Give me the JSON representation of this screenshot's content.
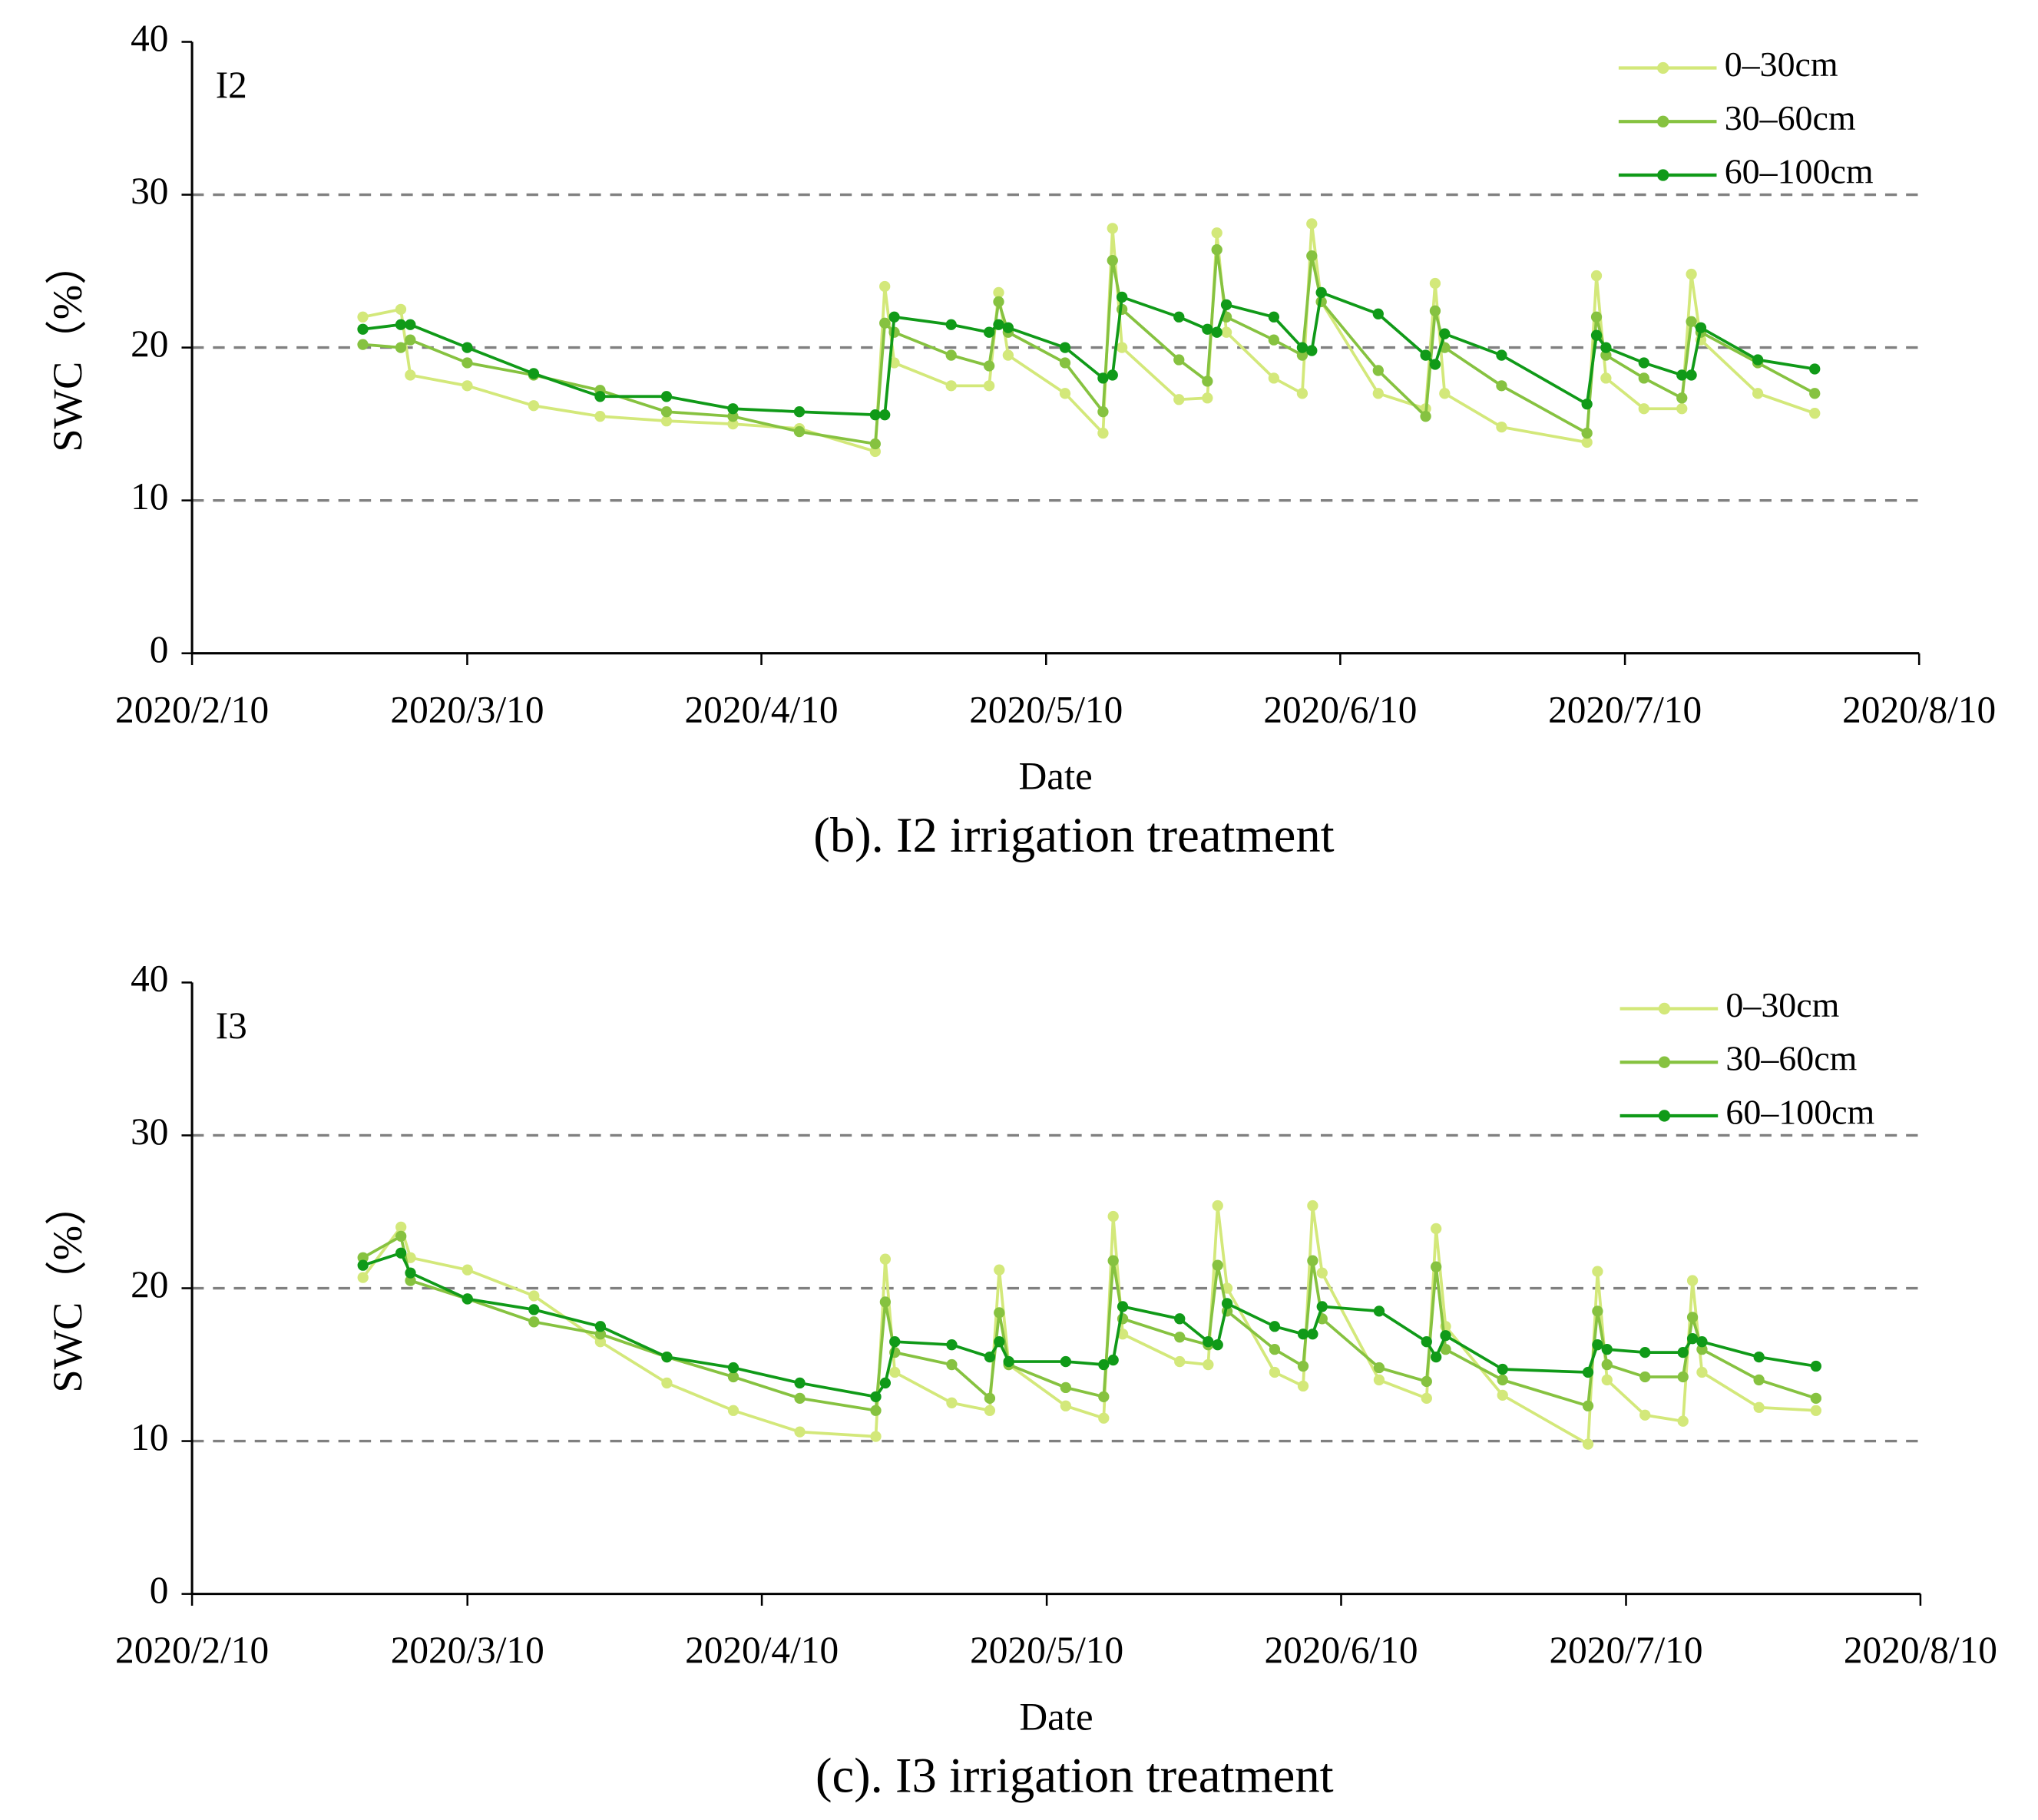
{
  "chart_data": [
    {
      "type": "line",
      "panel_label": "I2",
      "caption": "(b). I2 irrigation treatment",
      "xlabel": "Date",
      "ylabel": "SWC（%）",
      "xlim": [
        "2020/2/10",
        "2020/8/10"
      ],
      "xticks": [
        "2020/2/10",
        "2020/3/10",
        "2020/4/10",
        "2020/5/10",
        "2020/6/10",
        "2020/7/10",
        "2020/8/10"
      ],
      "ylim": [
        0,
        40
      ],
      "yticks": [
        0,
        10,
        20,
        30,
        40
      ],
      "grid": true,
      "legend": "upper right",
      "x": [
        "2020/2/28",
        "2020/3/3",
        "2020/3/4",
        "2020/3/10",
        "2020/3/17",
        "2020/3/24",
        "2020/3/31",
        "2020/4/7",
        "2020/4/14",
        "2020/4/22",
        "2020/4/23",
        "2020/4/24",
        "2020/4/30",
        "2020/5/4",
        "2020/5/5",
        "2020/5/6",
        "2020/5/12",
        "2020/5/16",
        "2020/5/17",
        "2020/5/18",
        "2020/5/24",
        "2020/5/27",
        "2020/5/28",
        "2020/5/29",
        "2020/6/3",
        "2020/6/6",
        "2020/6/7",
        "2020/6/8",
        "2020/6/14",
        "2020/6/19",
        "2020/6/20",
        "2020/6/21",
        "2020/6/27",
        "2020/7/6",
        "2020/7/7",
        "2020/7/8",
        "2020/7/12",
        "2020/7/16",
        "2020/7/17",
        "2020/7/18",
        "2020/7/24",
        "2020/7/30"
      ],
      "series": [
        {
          "name": "0–30cm",
          "color": "#d3e87a",
          "values": [
            22,
            22.5,
            18.2,
            17.5,
            16.2,
            15.5,
            15.2,
            15,
            14.7,
            13.2,
            24,
            19,
            17.5,
            17.5,
            23.6,
            19.5,
            17,
            14.4,
            27.8,
            20,
            16.6,
            16.7,
            27.5,
            21,
            18,
            17,
            28.1,
            23,
            17,
            16,
            24.2,
            17,
            14.8,
            13.8,
            24.7,
            18,
            16,
            16,
            24.8,
            20.5,
            17,
            15.7
          ]
        },
        {
          "name": "30–60cm",
          "color": "#86c240",
          "values": [
            20.2,
            20,
            20.5,
            19,
            18.2,
            17.2,
            15.8,
            15.5,
            14.5,
            13.7,
            21.6,
            21,
            19.5,
            18.8,
            23,
            21,
            19,
            15.8,
            25.7,
            22.5,
            19.2,
            17.8,
            26.4,
            22,
            20.5,
            19.5,
            26,
            23,
            18.5,
            15.5,
            22.4,
            20,
            17.5,
            14.4,
            22,
            19.5,
            18,
            16.7,
            21.7,
            21,
            19,
            17
          ]
        },
        {
          "name": "60–100cm",
          "color": "#109a18",
          "values": [
            21.2,
            21.5,
            21.5,
            20,
            18.3,
            16.8,
            16.8,
            16,
            15.8,
            15.6,
            15.6,
            22,
            21.5,
            21,
            21.5,
            21.3,
            20,
            18,
            18.2,
            23.3,
            22,
            21.2,
            21,
            22.8,
            22,
            20,
            19.8,
            23.6,
            22.2,
            19.5,
            18.9,
            20.9,
            19.5,
            16.3,
            20.8,
            20,
            19,
            18.2,
            18.2,
            21.3,
            19.2,
            18.6
          ]
        }
      ]
    },
    {
      "type": "line",
      "panel_label": "I3",
      "caption": "(c). I3 irrigation treatment",
      "xlabel": "Date",
      "ylabel": "SWC（%）",
      "xlim": [
        "2020/2/10",
        "2020/8/10"
      ],
      "xticks": [
        "2020/2/10",
        "2020/3/10",
        "2020/4/10",
        "2020/5/10",
        "2020/6/10",
        "2020/7/10",
        "2020/8/10"
      ],
      "ylim": [
        0,
        40
      ],
      "yticks": [
        0,
        10,
        20,
        30,
        40
      ],
      "grid": true,
      "legend": "upper right",
      "x": [
        "2020/2/28",
        "2020/3/3",
        "2020/3/4",
        "2020/3/10",
        "2020/3/17",
        "2020/3/24",
        "2020/3/31",
        "2020/4/7",
        "2020/4/14",
        "2020/4/22",
        "2020/4/23",
        "2020/4/24",
        "2020/4/30",
        "2020/5/4",
        "2020/5/5",
        "2020/5/6",
        "2020/5/12",
        "2020/5/16",
        "2020/5/17",
        "2020/5/18",
        "2020/5/24",
        "2020/5/27",
        "2020/5/28",
        "2020/5/29",
        "2020/6/3",
        "2020/6/6",
        "2020/6/7",
        "2020/6/8",
        "2020/6/14",
        "2020/6/19",
        "2020/6/20",
        "2020/6/21",
        "2020/6/27",
        "2020/7/6",
        "2020/7/7",
        "2020/7/8",
        "2020/7/12",
        "2020/7/16",
        "2020/7/17",
        "2020/7/18",
        "2020/7/24",
        "2020/7/30"
      ],
      "series": [
        {
          "name": "0–30cm",
          "color": "#d3e87a",
          "values": [
            20.7,
            24,
            22,
            21.2,
            19.5,
            16.5,
            13.8,
            12,
            10.6,
            10.3,
            21.9,
            14.5,
            12.5,
            12,
            21.2,
            15,
            12.3,
            11.5,
            24.7,
            17,
            15.2,
            15,
            25.4,
            20,
            14.5,
            13.6,
            25.4,
            21,
            14,
            12.8,
            23.9,
            17.5,
            13,
            9.8,
            21.1,
            14,
            11.7,
            11.3,
            20.5,
            14.5,
            12.2,
            12
          ]
        },
        {
          "name": "30–60cm",
          "color": "#86c240",
          "values": [
            22,
            23.4,
            20.5,
            19.3,
            17.8,
            17,
            15.5,
            14.2,
            12.8,
            12,
            19.1,
            15.8,
            15,
            12.8,
            18.4,
            15,
            13.5,
            12.9,
            21.8,
            18,
            16.8,
            16.3,
            21.5,
            18.5,
            16,
            14.9,
            21.8,
            18,
            14.8,
            13.9,
            21.4,
            16,
            14,
            12.3,
            18.5,
            15,
            14.2,
            14.2,
            18.1,
            16,
            14,
            12.8
          ]
        },
        {
          "name": "60–100cm",
          "color": "#109a18",
          "values": [
            21.5,
            22.3,
            21,
            19.3,
            18.6,
            17.5,
            15.5,
            14.8,
            13.8,
            12.9,
            13.8,
            16.5,
            16.3,
            15.5,
            16.5,
            15.2,
            15.2,
            15,
            15.3,
            18.8,
            18,
            16.5,
            16.3,
            19,
            17.5,
            17,
            17,
            18.8,
            18.5,
            16.5,
            15.5,
            16.9,
            14.7,
            14.5,
            16.3,
            16,
            15.8,
            15.8,
            16.7,
            16.5,
            15.5,
            14.9
          ]
        }
      ]
    }
  ]
}
